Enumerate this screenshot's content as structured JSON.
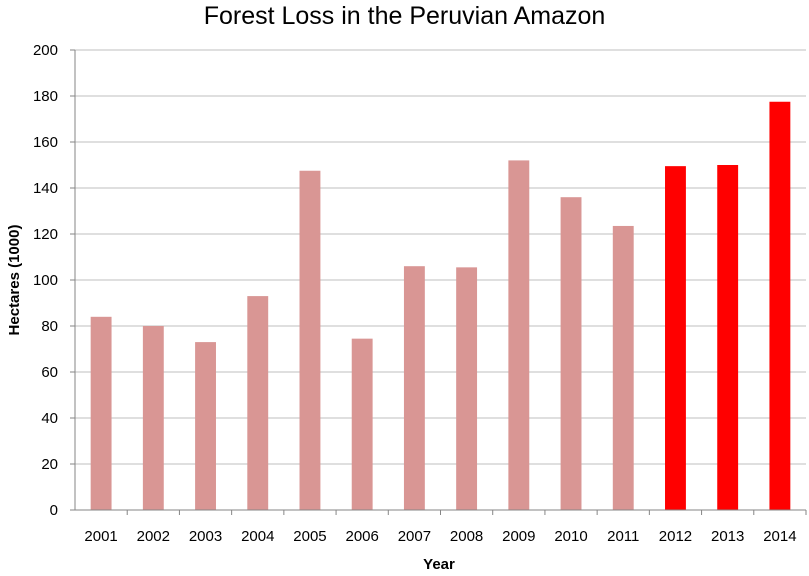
{
  "chart_data": {
    "type": "bar",
    "title": "Forest Loss in the Peruvian Amazon",
    "xlabel": "Year",
    "ylabel": "Hectares (1000)",
    "categories": [
      "2001",
      "2002",
      "2003",
      "2004",
      "2005",
      "2006",
      "2007",
      "2008",
      "2009",
      "2010",
      "2011",
      "2012",
      "2013",
      "2014"
    ],
    "values": [
      84,
      80,
      73,
      93,
      147.5,
      74.5,
      106,
      105.5,
      152,
      136,
      123.5,
      149.5,
      150,
      177.5
    ],
    "ylim": [
      0,
      200
    ],
    "yticks": [
      0,
      20,
      40,
      60,
      80,
      100,
      120,
      140,
      160,
      180,
      200
    ],
    "grid": true,
    "legend": "none",
    "colors": {
      "base": "#d99694",
      "highlight": "#ff0000",
      "grid": "#bfbfbf",
      "axis": "#868686"
    },
    "highlighted_categories": [
      "2012",
      "2013",
      "2014"
    ]
  }
}
